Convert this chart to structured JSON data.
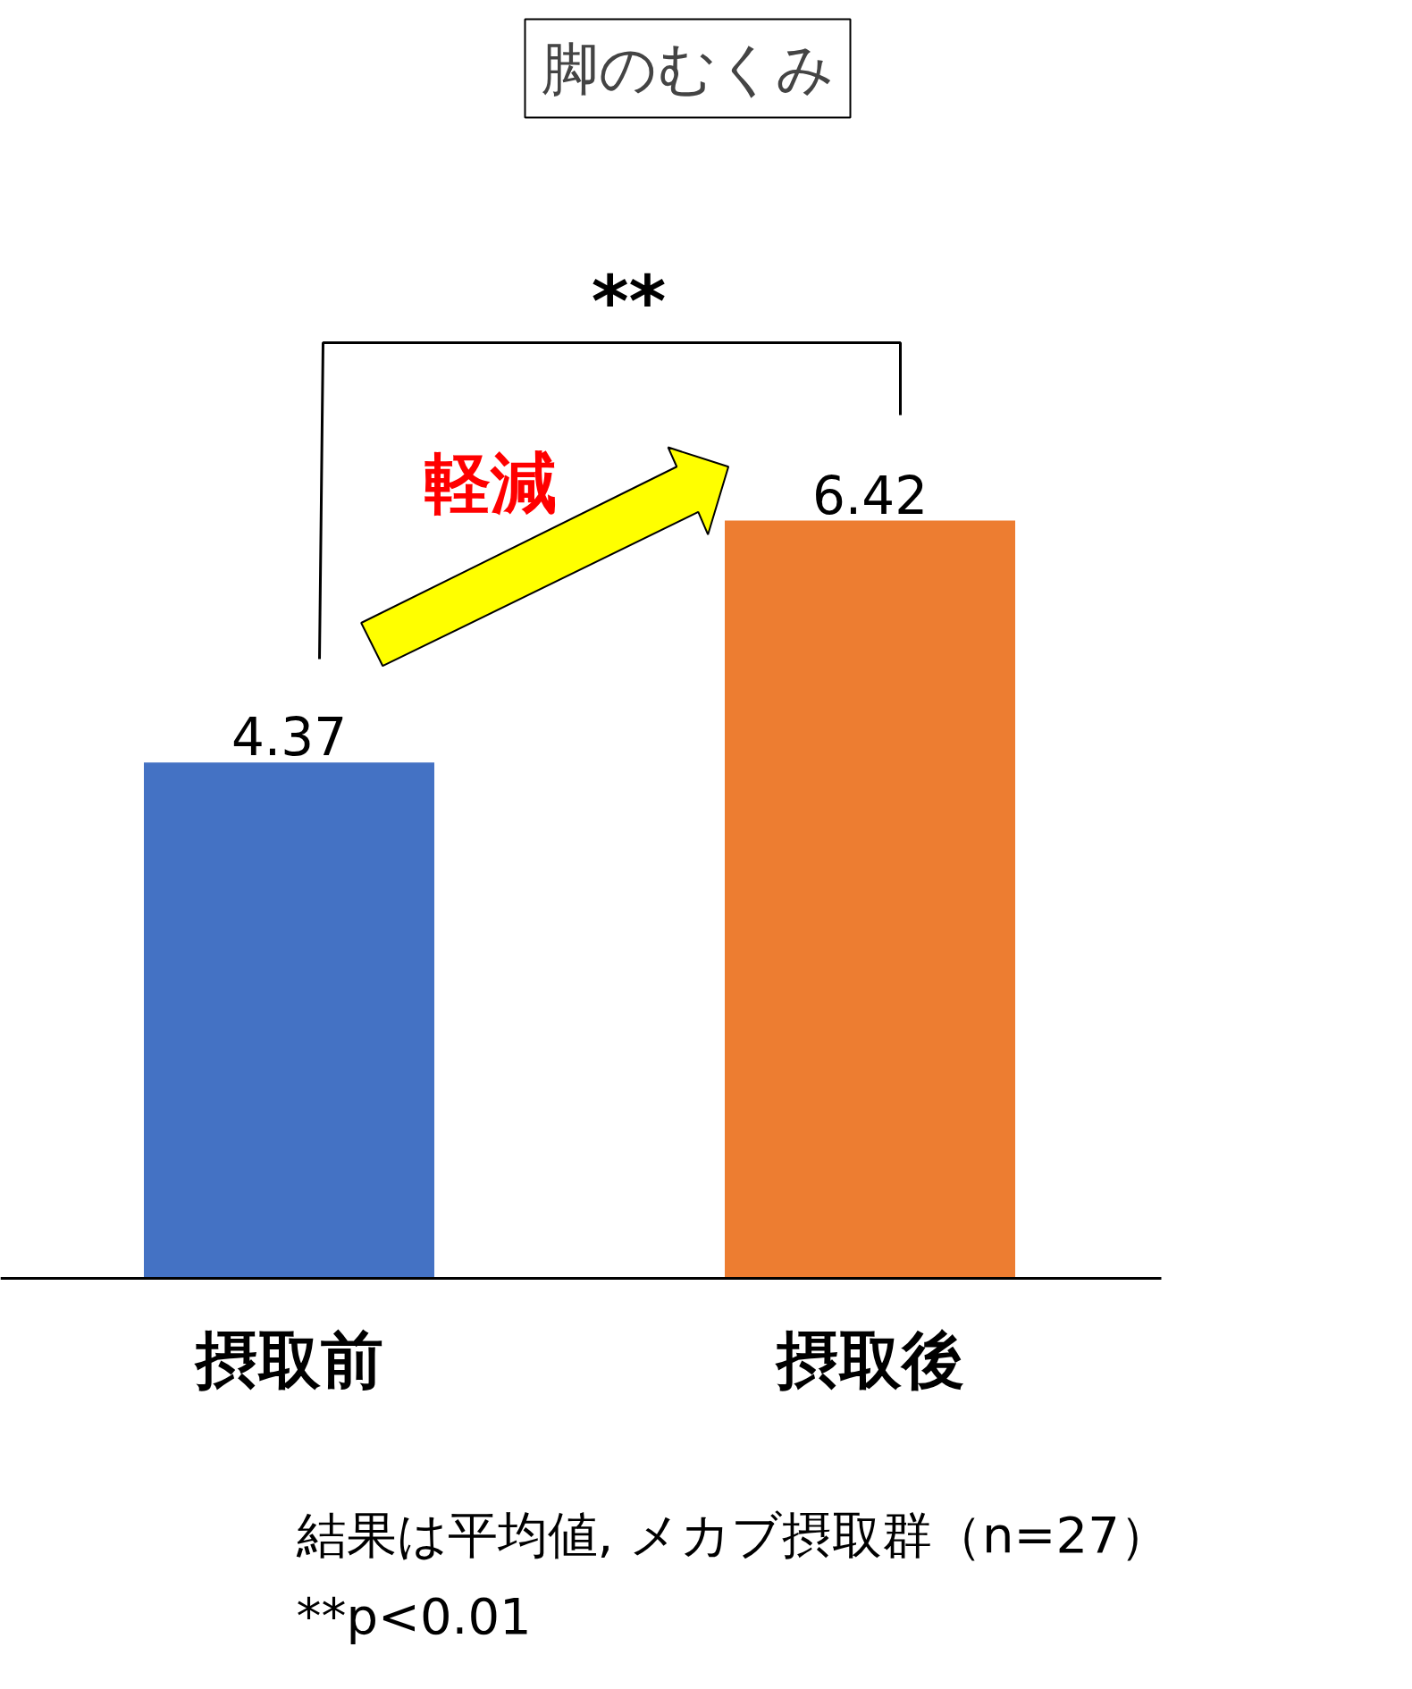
{
  "chart_data": {
    "type": "bar",
    "title": "脚のむくみ",
    "categories": [
      "摂取前",
      "摂取後"
    ],
    "values": [
      4.37,
      6.42
    ],
    "colors": [
      "#4472c4",
      "#ed7d31"
    ],
    "data_labels": true,
    "annotations": [
      "**",
      "軽減",
      "結果は平均値, メカブ摂取群（n=27）",
      "**p<0.01"
    ]
  }
}
